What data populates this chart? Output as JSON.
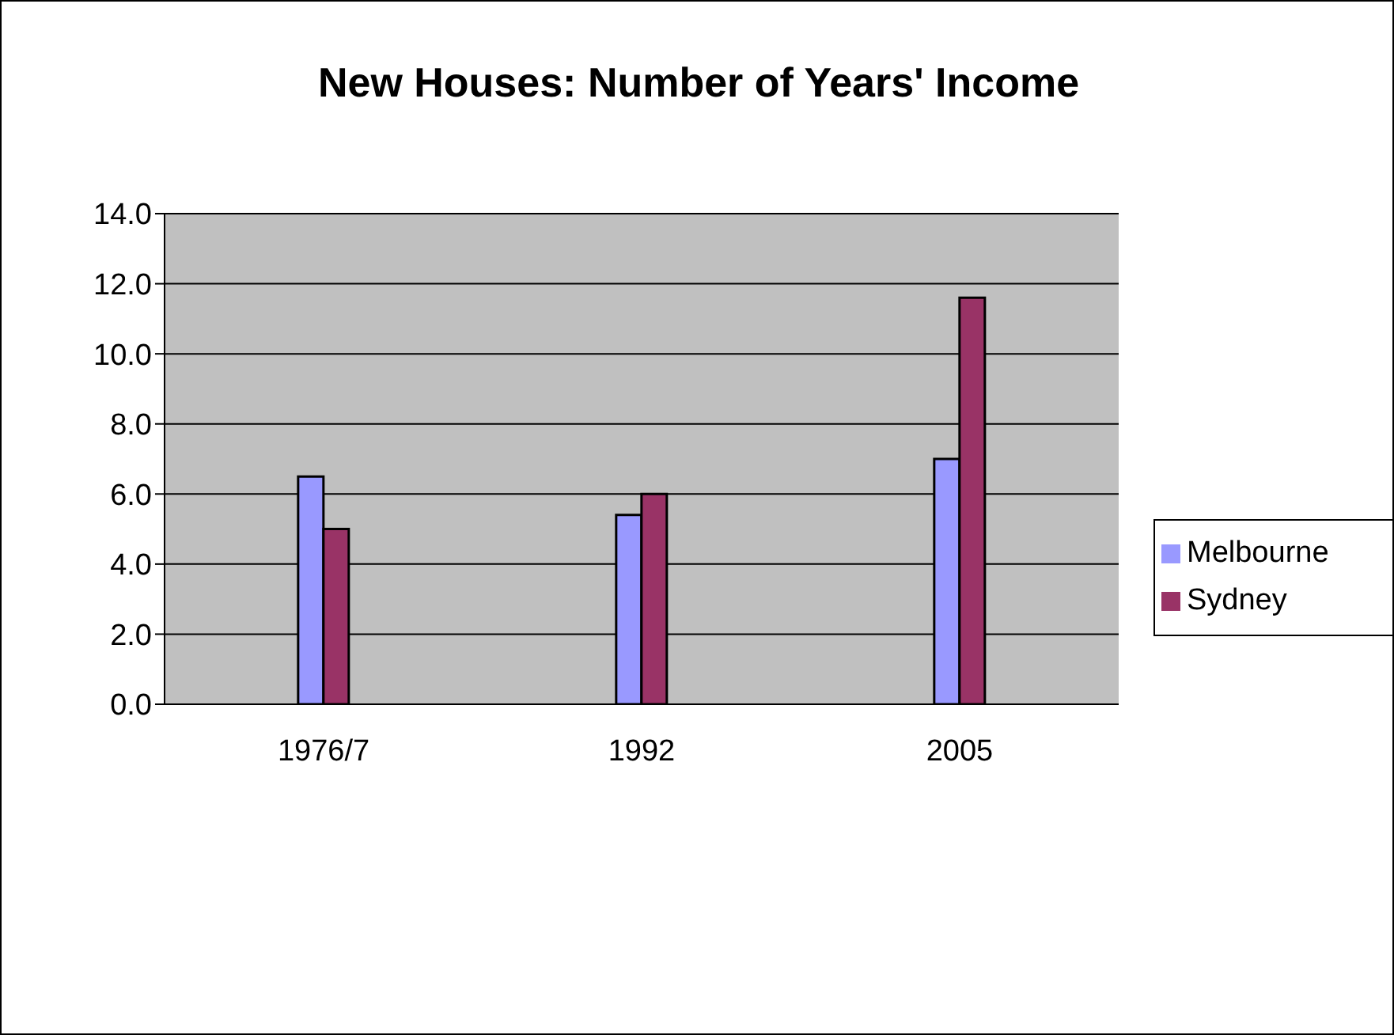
{
  "chart_data": {
    "type": "bar",
    "title": "New Houses: Number of Years' Income",
    "categories": [
      "1976/7",
      "1992",
      "2005"
    ],
    "series": [
      {
        "name": "Melbourne",
        "color": "#9999ff",
        "values": [
          6.5,
          5.4,
          7.0
        ]
      },
      {
        "name": "Sydney",
        "color": "#993366",
        "values": [
          5.0,
          6.0,
          11.6
        ]
      }
    ],
    "ylim": [
      0,
      14
    ],
    "yticks": [
      {
        "value": 0,
        "label": "0.0"
      },
      {
        "value": 2,
        "label": "2.0"
      },
      {
        "value": 4,
        "label": "4.0"
      },
      {
        "value": 6,
        "label": "6.0"
      },
      {
        "value": 8,
        "label": "8.0"
      },
      {
        "value": 10,
        "label": "10.0"
      },
      {
        "value": 12,
        "label": "12.0"
      },
      {
        "value": 14,
        "label": "14.0"
      }
    ],
    "grid": "y",
    "legend": "right"
  }
}
